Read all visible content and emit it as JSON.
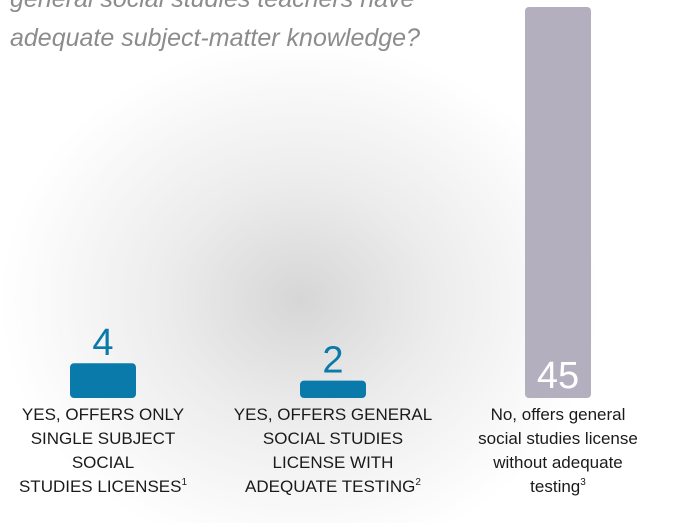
{
  "chart_data": {
    "type": "bar",
    "title": [
      "general social studies teachers have",
      "adequate subject-matter knowledge?"
    ],
    "categories": [
      [
        "YES, OFFERS ONLY",
        "SINGLE SUBJECT",
        "SOCIAL",
        "STUDIES LICENSES"
      ],
      [
        "YES, OFFERS GENERAL",
        "SOCIAL STUDIES",
        "LICENSE WITH",
        "ADEQUATE TESTING"
      ],
      [
        "No, offers general",
        "social studies license",
        "without adequate",
        "testing"
      ]
    ],
    "footnotes": [
      "1",
      "2",
      "3"
    ],
    "values": [
      4,
      2,
      45
    ],
    "colors": [
      "#0a7aaa",
      "#0a7aaa",
      "#b4afbf"
    ],
    "ylim": [
      0,
      45
    ]
  }
}
